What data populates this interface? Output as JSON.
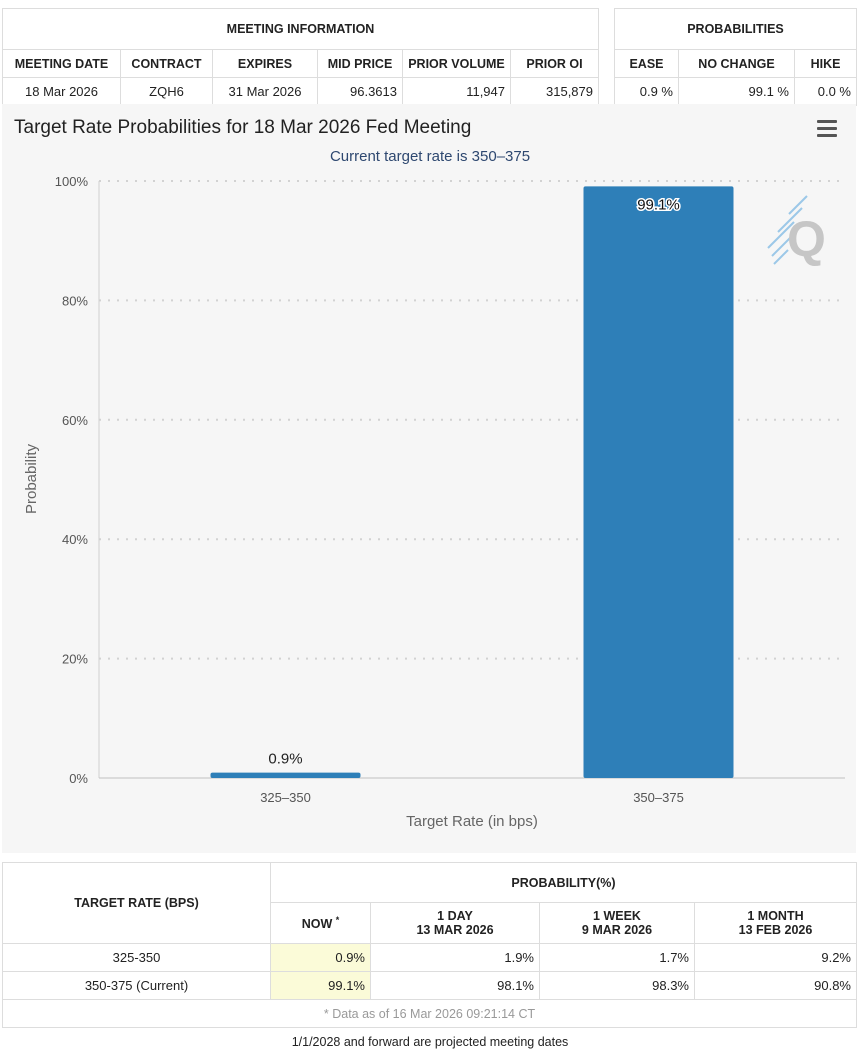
{
  "meeting_info": {
    "section_title": "MEETING INFORMATION",
    "headers": [
      "MEETING DATE",
      "CONTRACT",
      "EXPIRES",
      "MID PRICE",
      "PRIOR VOLUME",
      "PRIOR OI"
    ],
    "values": [
      "18 Mar 2026",
      "ZQH6",
      "31 Mar 2026",
      "96.3613",
      "11,947",
      "315,879"
    ]
  },
  "probabilities": {
    "section_title": "PROBABILITIES",
    "headers": [
      "EASE",
      "NO CHANGE",
      "HIKE"
    ],
    "values": [
      "0.9 %",
      "99.1 %",
      "0.0 %"
    ]
  },
  "chart_data": {
    "type": "bar",
    "title": "Target Rate Probabilities for 18 Mar 2026 Fed Meeting",
    "subtitle": "Current target rate is 350–375",
    "xlabel": "Target Rate (in bps)",
    "ylabel": "Probability",
    "categories": [
      "325–350",
      "350–375"
    ],
    "values": [
      0.9,
      99.1
    ],
    "data_labels": [
      "0.9%",
      "99.1%"
    ],
    "ylim": [
      0,
      100
    ],
    "yticks": [
      0,
      20,
      40,
      60,
      80,
      100
    ],
    "ytick_labels": [
      "0%",
      "20%",
      "40%",
      "60%",
      "80%",
      "100%"
    ],
    "grid": true,
    "legend": false,
    "bar_color": "#2e7fb8",
    "watermark": "Q"
  },
  "history": {
    "row_header": "TARGET RATE (BPS)",
    "group_header": "PROBABILITY(%)",
    "columns": [
      {
        "label": "NOW",
        "sub": "",
        "mark": "*"
      },
      {
        "label": "1 DAY",
        "sub": "13 MAR 2026",
        "mark": ""
      },
      {
        "label": "1 WEEK",
        "sub": "9 MAR 2026",
        "mark": ""
      },
      {
        "label": "1 MONTH",
        "sub": "13 FEB 2026",
        "mark": ""
      }
    ],
    "rows": [
      {
        "rate": "325-350",
        "values": [
          "0.9%",
          "1.9%",
          "1.7%",
          "9.2%"
        ]
      },
      {
        "rate": "350-375 (Current)",
        "values": [
          "99.1%",
          "98.1%",
          "98.3%",
          "90.8%"
        ]
      }
    ],
    "note": "* Data as of 16 Mar 2026 09:21:14 CT"
  },
  "footer_note": "1/1/2028 and forward are projected meeting dates"
}
